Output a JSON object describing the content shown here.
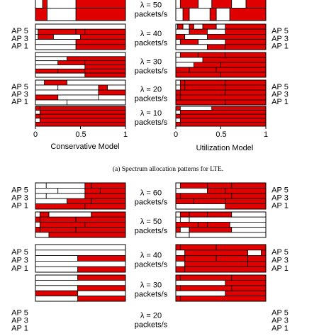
{
  "chart_data": [
    {
      "type": "heatmap",
      "caption": "(a) Spectrum allocation patterns for LTE.",
      "fill_color": "#e00000",
      "empty_color": "#ffffff",
      "x_ticks": [
        "0",
        "0.5",
        "1"
      ],
      "ap_labels": [
        "AP 5",
        "AP 3",
        "AP 1"
      ],
      "left_xlabel": "Conservative Model",
      "right_xlabel": "Utilization Model",
      "rows": [
        {
          "lambda_line1": "λ = 50",
          "lambda_line2": "packets/s",
          "ap_labels_left": false,
          "ap_labels_right": false
        },
        {
          "lambda_line1": "λ = 40",
          "lambda_line2": "packets/s",
          "ap_labels_left": true,
          "ap_labels_right": true
        },
        {
          "lambda_line1": "λ = 30",
          "lambda_line2": "packets/s",
          "ap_labels_left": false,
          "ap_labels_right": false
        },
        {
          "lambda_line1": "λ = 20",
          "lambda_line2": "packets/s",
          "ap_labels_left": true,
          "ap_labels_right": true
        },
        {
          "lambda_line1": "λ = 10",
          "lambda_line2": "packets/s",
          "ap_labels_left": false,
          "ap_labels_right": false
        }
      ]
    },
    {
      "type": "heatmap",
      "fill_color": "#e00000",
      "empty_color": "#ffffff",
      "ap_labels": [
        "AP 5",
        "AP 3",
        "AP 1"
      ],
      "rows": [
        {
          "lambda_line1": "λ = 60",
          "lambda_line2": "packets/s",
          "ap_labels_left": true,
          "ap_labels_right": true
        },
        {
          "lambda_line1": "λ = 50",
          "lambda_line2": "packets/s",
          "ap_labels_left": false,
          "ap_labels_right": false
        },
        {
          "lambda_line1": "λ = 40",
          "lambda_line2": "packets/s",
          "ap_labels_left": true,
          "ap_labels_right": true
        },
        {
          "lambda_line1": "λ = 30",
          "lambda_line2": "packets/s",
          "ap_labels_left": false,
          "ap_labels_right": false
        },
        {
          "lambda_line1": "λ = 20",
          "lambda_line2": "packets/s",
          "ap_labels_left": true,
          "ap_labels_right": true
        }
      ]
    }
  ],
  "panels": [
    {
      "cells": [
        [
          0.0,
          0.08,
          0
        ],
        [
          0.08,
          0.13,
          1
        ],
        [
          0.13,
          0.45,
          0
        ],
        [
          0.45,
          1.0,
          1
        ],
        [
          0.0,
          0.13,
          1
        ],
        [
          0.13,
          0.45,
          0
        ],
        [
          0.45,
          1.0,
          1
        ]
      ]
    },
    {
      "cells": [
        [
          0.0,
          0.05,
          0
        ],
        [
          0.05,
          0.25,
          1
        ],
        [
          0.25,
          0.4,
          0
        ],
        [
          0.4,
          0.62,
          1
        ],
        [
          0.62,
          0.78,
          0
        ],
        [
          0.78,
          1.0,
          1
        ],
        [
          0.0,
          0.08,
          0
        ],
        [
          0.08,
          0.15,
          1
        ],
        [
          0.15,
          0.38,
          0
        ],
        [
          0.38,
          0.45,
          1
        ],
        [
          0.45,
          0.6,
          0
        ],
        [
          0.6,
          1.0,
          1
        ]
      ]
    },
    {
      "cells": [
        [
          0.0,
          1.0,
          0
        ],
        [
          0.0,
          0.03,
          0
        ],
        [
          0.03,
          0.45,
          1
        ],
        [
          0.45,
          0.55,
          1
        ],
        [
          0.55,
          1.0,
          1
        ],
        [
          0.0,
          0.03,
          0
        ],
        [
          0.03,
          0.2,
          1
        ],
        [
          0.2,
          0.5,
          0
        ],
        [
          0.5,
          1.0,
          1
        ],
        [
          0.0,
          0.45,
          0
        ],
        [
          0.45,
          1.0,
          1
        ],
        [
          0.0,
          0.45,
          0
        ],
        [
          0.45,
          1.0,
          1
        ]
      ]
    },
    {
      "cells": [
        [
          0.0,
          0.02,
          0
        ],
        [
          0.02,
          0.08,
          1
        ],
        [
          0.08,
          0.15,
          0
        ],
        [
          0.15,
          0.2,
          1
        ],
        [
          0.2,
          0.3,
          0
        ],
        [
          0.3,
          0.45,
          1
        ],
        [
          0.45,
          0.55,
          0
        ],
        [
          0.55,
          1.0,
          1
        ],
        [
          0.0,
          0.15,
          0
        ],
        [
          0.15,
          0.35,
          1
        ],
        [
          0.35,
          0.55,
          0
        ],
        [
          0.55,
          1.0,
          1
        ],
        [
          0.0,
          0.1,
          1
        ],
        [
          0.1,
          0.35,
          0
        ],
        [
          0.35,
          1.0,
          1
        ],
        [
          0.0,
          0.05,
          0
        ],
        [
          0.05,
          0.25,
          1
        ],
        [
          0.25,
          0.55,
          0
        ],
        [
          0.55,
          1.0,
          1
        ],
        [
          0.0,
          0.35,
          0
        ],
        [
          0.35,
          0.55,
          1
        ],
        [
          0.55,
          1.0,
          1
        ]
      ]
    },
    {
      "cells": [
        [
          0.0,
          1.0,
          0
        ],
        [
          0.0,
          0.35,
          0
        ],
        [
          0.35,
          1.0,
          1
        ],
        [
          0.0,
          0.25,
          0
        ],
        [
          0.25,
          0.55,
          1
        ],
        [
          0.55,
          1.0,
          1
        ],
        [
          0.0,
          0.55,
          0
        ],
        [
          0.55,
          1.0,
          1
        ],
        [
          0.0,
          0.25,
          1
        ],
        [
          0.25,
          0.55,
          1
        ],
        [
          0.55,
          1.0,
          1
        ],
        [
          0.0,
          0.55,
          0
        ],
        [
          0.55,
          1.0,
          1
        ]
      ]
    },
    {
      "cells": [
        [
          0.0,
          0.05,
          0
        ],
        [
          0.05,
          0.25,
          1
        ],
        [
          0.25,
          0.55,
          1
        ],
        [
          0.55,
          1.0,
          1
        ],
        [
          0.0,
          0.3,
          0
        ],
        [
          0.3,
          1.0,
          1
        ],
        [
          0.0,
          0.2,
          0
        ],
        [
          0.2,
          0.5,
          1
        ],
        [
          0.5,
          1.0,
          1
        ],
        [
          0.0,
          0.15,
          1
        ],
        [
          0.15,
          0.45,
          1
        ],
        [
          0.45,
          1.0,
          1
        ],
        [
          0.0,
          0.5,
          1
        ],
        [
          0.5,
          1.0,
          1
        ]
      ]
    },
    {
      "cells": [
        [
          0.0,
          0.1,
          0
        ],
        [
          0.1,
          0.35,
          1
        ],
        [
          0.35,
          1.0,
          0
        ],
        [
          0.0,
          0.25,
          0
        ],
        [
          0.25,
          0.7,
          0
        ],
        [
          0.7,
          0.8,
          1
        ],
        [
          0.8,
          1.0,
          0
        ],
        [
          0.0,
          0.7,
          0
        ],
        [
          0.7,
          1.0,
          1
        ],
        [
          0.0,
          0.25,
          1
        ],
        [
          0.25,
          0.7,
          0
        ],
        [
          0.7,
          1.0,
          0
        ],
        [
          0.0,
          0.35,
          0
        ],
        [
          0.35,
          1.0,
          0
        ]
      ]
    },
    {
      "cells": [
        [
          0.0,
          0.05,
          0
        ],
        [
          0.05,
          0.1,
          1
        ],
        [
          0.1,
          0.55,
          1
        ],
        [
          0.55,
          1.0,
          1
        ],
        [
          0.0,
          0.05,
          0
        ],
        [
          0.05,
          0.1,
          1
        ],
        [
          0.1,
          0.55,
          1
        ],
        [
          0.55,
          1.0,
          1
        ],
        [
          0.0,
          0.05,
          1
        ],
        [
          0.05,
          0.55,
          1
        ],
        [
          0.55,
          1.0,
          1
        ],
        [
          0.0,
          0.05,
          1
        ],
        [
          0.05,
          1.0,
          1
        ],
        [
          0.0,
          0.55,
          1
        ],
        [
          0.55,
          1.0,
          1
        ]
      ]
    },
    {
      "cells": [
        [
          0.0,
          0.05,
          1
        ],
        [
          0.05,
          1.0,
          1
        ],
        [
          0.0,
          0.05,
          0
        ],
        [
          0.05,
          1.0,
          1
        ],
        [
          0.0,
          0.05,
          1
        ],
        [
          0.05,
          1.0,
          1
        ],
        [
          0.0,
          0.05,
          0
        ],
        [
          0.05,
          1.0,
          1
        ],
        [
          0.0,
          1.0,
          1
        ]
      ]
    },
    {
      "cells": [
        [
          0.0,
          0.05,
          1
        ],
        [
          0.05,
          0.4,
          0
        ],
        [
          0.4,
          1.0,
          1
        ],
        [
          0.0,
          0.05,
          0
        ],
        [
          0.05,
          1.0,
          1
        ],
        [
          0.0,
          0.05,
          1
        ],
        [
          0.05,
          1.0,
          1
        ],
        [
          0.0,
          0.05,
          0
        ],
        [
          0.05,
          1.0,
          1
        ],
        [
          0.0,
          0.05,
          1
        ],
        [
          0.05,
          1.0,
          1
        ]
      ]
    },
    {
      "cells": [
        [
          0.0,
          0.12,
          0
        ],
        [
          0.12,
          0.55,
          0
        ],
        [
          0.55,
          0.62,
          1
        ],
        [
          0.62,
          1.0,
          1
        ],
        [
          0.0,
          0.25,
          0
        ],
        [
          0.25,
          0.55,
          0
        ],
        [
          0.55,
          0.72,
          1
        ],
        [
          0.72,
          1.0,
          1
        ],
        [
          0.0,
          0.12,
          0
        ],
        [
          0.12,
          0.55,
          0
        ],
        [
          0.55,
          1.0,
          1
        ],
        [
          0.0,
          0.35,
          0
        ],
        [
          0.35,
          0.62,
          1
        ],
        [
          0.62,
          1.0,
          1
        ],
        [
          0.0,
          0.55,
          1
        ],
        [
          0.55,
          1.0,
          1
        ]
      ]
    },
    {
      "cells": [
        [
          0.0,
          0.05,
          0
        ],
        [
          0.05,
          0.35,
          1
        ],
        [
          0.35,
          0.62,
          1
        ],
        [
          0.62,
          1.0,
          1
        ],
        [
          0.0,
          0.35,
          0
        ],
        [
          0.35,
          0.55,
          1
        ],
        [
          0.55,
          1.0,
          1
        ],
        [
          0.0,
          0.05,
          1
        ],
        [
          0.05,
          0.62,
          1
        ],
        [
          0.62,
          1.0,
          1
        ],
        [
          0.0,
          0.2,
          1
        ],
        [
          0.2,
          0.55,
          1
        ],
        [
          0.55,
          1.0,
          1
        ],
        [
          0.0,
          0.55,
          0
        ],
        [
          0.55,
          1.0,
          1
        ]
      ]
    },
    {
      "cells": [
        [
          0.0,
          0.05,
          0
        ],
        [
          0.05,
          0.15,
          1
        ],
        [
          0.15,
          0.62,
          0
        ],
        [
          0.62,
          1.0,
          1
        ],
        [
          0.0,
          0.05,
          1
        ],
        [
          0.05,
          0.45,
          1
        ],
        [
          0.45,
          1.0,
          1
        ],
        [
          0.0,
          0.05,
          0
        ],
        [
          0.05,
          0.55,
          1
        ],
        [
          0.55,
          1.0,
          1
        ],
        [
          0.0,
          0.05,
          1
        ],
        [
          0.05,
          0.45,
          1
        ],
        [
          0.45,
          1.0,
          1
        ],
        [
          0.0,
          0.15,
          0
        ],
        [
          0.15,
          1.0,
          1
        ]
      ]
    },
    {
      "cells": [
        [
          0.0,
          0.05,
          0
        ],
        [
          0.05,
          0.15,
          1
        ],
        [
          0.15,
          0.35,
          1
        ],
        [
          0.35,
          0.62,
          1
        ],
        [
          0.62,
          1.0,
          0
        ],
        [
          0.0,
          0.05,
          0
        ],
        [
          0.05,
          0.15,
          0
        ],
        [
          0.15,
          1.0,
          0
        ],
        [
          0.0,
          0.25,
          1
        ],
        [
          0.25,
          0.35,
          1
        ],
        [
          0.35,
          0.6,
          1
        ],
        [
          0.6,
          1.0,
          0
        ],
        [
          0.0,
          0.05,
          1
        ],
        [
          0.05,
          0.15,
          0
        ],
        [
          0.15,
          0.62,
          1
        ],
        [
          0.62,
          1.0,
          0
        ],
        [
          0.0,
          0.15,
          0
        ],
        [
          0.15,
          1.0,
          0
        ]
      ]
    },
    {
      "cells": [
        [
          0.0,
          1.0,
          0
        ],
        [
          0.0,
          1.0,
          0
        ],
        [
          0.0,
          0.47,
          0
        ],
        [
          0.47,
          1.0,
          1
        ],
        [
          0.0,
          1.0,
          0
        ],
        [
          0.0,
          0.47,
          0
        ],
        [
          0.47,
          1.0,
          1
        ]
      ]
    },
    {
      "cells": [
        [
          0.0,
          0.05,
          1
        ],
        [
          0.05,
          0.45,
          1
        ],
        [
          0.45,
          1.0,
          1
        ],
        [
          0.0,
          0.1,
          0
        ],
        [
          0.1,
          0.8,
          1
        ],
        [
          0.8,
          0.95,
          0
        ],
        [
          0.95,
          1.0,
          1
        ],
        [
          0.0,
          0.1,
          1
        ],
        [
          0.1,
          0.45,
          1
        ],
        [
          0.45,
          0.8,
          1
        ],
        [
          0.8,
          1.0,
          1
        ],
        [
          0.0,
          0.1,
          0
        ],
        [
          0.1,
          0.8,
          1
        ],
        [
          0.8,
          1.0,
          1
        ],
        [
          0.0,
          0.1,
          1
        ],
        [
          0.1,
          1.0,
          1
        ]
      ]
    },
    {
      "cells": [
        [
          0.0,
          0.47,
          0
        ],
        [
          0.47,
          1.0,
          1
        ],
        [
          0.0,
          1.0,
          0
        ],
        [
          0.0,
          0.47,
          0
        ],
        [
          0.47,
          1.0,
          1
        ],
        [
          0.0,
          0.47,
          1
        ],
        [
          0.47,
          1.0,
          0
        ],
        [
          0.0,
          0.47,
          0
        ],
        [
          0.47,
          1.0,
          1
        ]
      ]
    },
    {
      "cells": [
        [
          0.0,
          0.05,
          1
        ],
        [
          0.05,
          0.62,
          1
        ],
        [
          0.62,
          1.0,
          1
        ],
        [
          0.0,
          0.55,
          0
        ],
        [
          0.55,
          1.0,
          1
        ],
        [
          0.0,
          0.05,
          1
        ],
        [
          0.05,
          0.62,
          1
        ],
        [
          0.62,
          1.0,
          1
        ],
        [
          0.0,
          0.55,
          0
        ],
        [
          0.55,
          1.0,
          1
        ],
        [
          0.0,
          0.05,
          1
        ],
        [
          0.05,
          1.0,
          1
        ]
      ]
    }
  ]
}
